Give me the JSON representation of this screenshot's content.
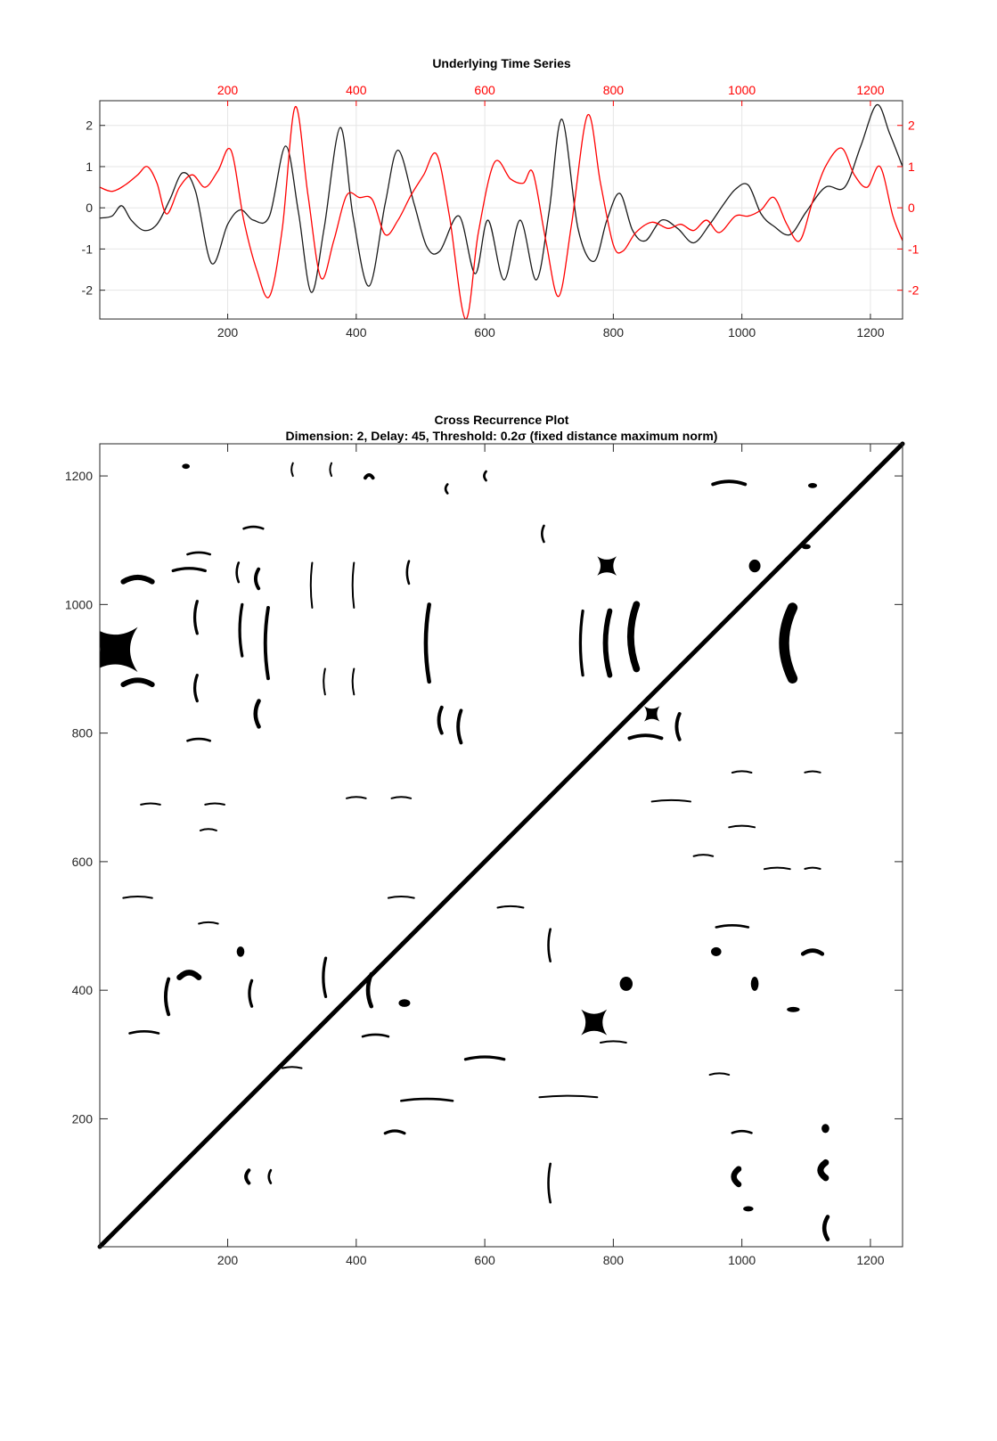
{
  "chart_data": [
    {
      "type": "line",
      "title": "Underlying Time Series",
      "xlim": [
        1,
        1250
      ],
      "ylim": [
        -2.7,
        2.6
      ],
      "grid": true,
      "bottom_x_ticks": [
        "200",
        "400",
        "600",
        "800",
        "1000",
        "1200"
      ],
      "top_x_ticks": [
        "200",
        "400",
        "600",
        "800",
        "1000",
        "1200"
      ],
      "left_y_ticks": [
        "2",
        "1",
        "0",
        "-1",
        "-2"
      ],
      "right_y_ticks": [
        "2",
        "1",
        "0",
        "-1",
        "-2"
      ],
      "colors": {
        "series_black": "#1a1a1a",
        "series_red": "#ff0000",
        "right_axis": "#ff0000",
        "top_axis": "#ff0000"
      },
      "series": [
        {
          "color": "#1a1a1a",
          "x": [
            1,
            20,
            35,
            50,
            70,
            90,
            110,
            130,
            150,
            175,
            200,
            220,
            240,
            265,
            290,
            310,
            330,
            350,
            375,
            395,
            420,
            445,
            465,
            490,
            510,
            530,
            560,
            585,
            605,
            630,
            655,
            680,
            700,
            720,
            745,
            770,
            790,
            810,
            830,
            850,
            875,
            900,
            925,
            950,
            970,
            990,
            1010,
            1030,
            1050,
            1075,
            1100,
            1130,
            1160,
            1185,
            1210,
            1230,
            1250
          ],
          "y": [
            -0.25,
            -0.2,
            0.05,
            -0.3,
            -0.55,
            -0.4,
            0.2,
            0.85,
            0.4,
            -1.35,
            -0.4,
            -0.05,
            -0.3,
            -0.2,
            1.5,
            -0.1,
            -2.05,
            -0.5,
            1.95,
            -0.2,
            -1.9,
            0.1,
            1.4,
            0.1,
            -0.95,
            -1.05,
            -0.2,
            -1.6,
            -0.3,
            -1.75,
            -0.3,
            -1.75,
            -0.1,
            2.15,
            -0.5,
            -1.3,
            -0.3,
            0.35,
            -0.55,
            -0.8,
            -0.3,
            -0.5,
            -0.85,
            -0.4,
            0.05,
            0.45,
            0.55,
            -0.15,
            -0.45,
            -0.65,
            -0.1,
            0.5,
            0.5,
            1.5,
            2.5,
            1.8,
            1.0
          ]
        },
        {
          "color": "#ff0000",
          "x": [
            1,
            20,
            40,
            60,
            75,
            90,
            105,
            125,
            145,
            165,
            185,
            205,
            225,
            245,
            265,
            285,
            305,
            325,
            345,
            365,
            385,
            405,
            425,
            445,
            465,
            485,
            505,
            525,
            545,
            570,
            590,
            615,
            640,
            660,
            675,
            695,
            715,
            735,
            760,
            780,
            800,
            815,
            835,
            860,
            885,
            905,
            925,
            945,
            965,
            990,
            1010,
            1030,
            1050,
            1070,
            1090,
            1110,
            1130,
            1155,
            1175,
            1195,
            1215,
            1235,
            1250
          ],
          "y": [
            0.5,
            0.4,
            0.55,
            0.8,
            1.0,
            0.6,
            -0.15,
            0.5,
            0.8,
            0.5,
            0.9,
            1.4,
            -0.3,
            -1.5,
            -2.15,
            -0.5,
            2.45,
            0.3,
            -1.7,
            -0.8,
            0.3,
            0.25,
            0.2,
            -0.65,
            -0.3,
            0.3,
            0.8,
            1.3,
            -0.2,
            -2.7,
            -0.6,
            1.1,
            0.7,
            0.6,
            0.85,
            -0.8,
            -2.15,
            -0.4,
            2.25,
            0.6,
            -0.9,
            -1.05,
            -0.6,
            -0.35,
            -0.5,
            -0.4,
            -0.55,
            -0.3,
            -0.6,
            -0.2,
            -0.2,
            -0.05,
            0.25,
            -0.4,
            -0.8,
            0.15,
            1.0,
            1.45,
            0.8,
            0.5,
            1.0,
            -0.2,
            -0.8
          ]
        }
      ]
    },
    {
      "type": "heatmap",
      "title": "Cross Recurrence Plot",
      "subtitle": "Dimension: 2,  Delay: 45,  Threshold: 0.2σ (fixed distance maximum norm)",
      "xlim": [
        1,
        1250
      ],
      "ylim": [
        1,
        1250
      ],
      "x_ticks": [
        "200",
        "400",
        "600",
        "800",
        "1000",
        "1200"
      ],
      "y_ticks": [
        "1200",
        "1000",
        "800",
        "600",
        "400",
        "200"
      ],
      "diagonal": {
        "from": [
          1,
          1
        ],
        "to": [
          1250,
          1250
        ]
      },
      "colors": {
        "recurrence": "#000000",
        "background": "#ffffff"
      },
      "blobs": [
        {
          "x": 25,
          "y": 930,
          "w": 70,
          "h": 70,
          "shape": "cross"
        },
        {
          "x": 60,
          "y": 1040,
          "w": 45,
          "h": 18,
          "shape": "arc"
        },
        {
          "x": 60,
          "y": 880,
          "w": 45,
          "h": 18,
          "shape": "arc"
        },
        {
          "x": 140,
          "y": 1055,
          "w": 50,
          "h": 10,
          "shape": "arc"
        },
        {
          "x": 150,
          "y": 980,
          "w": 10,
          "h": 50,
          "shape": "arc"
        },
        {
          "x": 150,
          "y": 870,
          "w": 10,
          "h": 40,
          "shape": "arc"
        },
        {
          "x": 155,
          "y": 1080,
          "w": 35,
          "h": 8,
          "shape": "arc"
        },
        {
          "x": 155,
          "y": 790,
          "w": 35,
          "h": 8,
          "shape": "arc"
        },
        {
          "x": 135,
          "y": 1215,
          "w": 12,
          "h": 8,
          "shape": "dot"
        },
        {
          "x": 240,
          "y": 1120,
          "w": 30,
          "h": 8,
          "shape": "arc"
        },
        {
          "x": 245,
          "y": 1040,
          "w": 12,
          "h": 30,
          "shape": "arc"
        },
        {
          "x": 220,
          "y": 960,
          "w": 10,
          "h": 80,
          "shape": "arc"
        },
        {
          "x": 260,
          "y": 940,
          "w": 12,
          "h": 110,
          "shape": "arc"
        },
        {
          "x": 245,
          "y": 830,
          "w": 14,
          "h": 40,
          "shape": "arc"
        },
        {
          "x": 215,
          "y": 1050,
          "w": 8,
          "h": 30,
          "shape": "arc"
        },
        {
          "x": 510,
          "y": 940,
          "w": 14,
          "h": 120,
          "shape": "arc"
        },
        {
          "x": 480,
          "y": 1050,
          "w": 8,
          "h": 35,
          "shape": "arc"
        },
        {
          "x": 560,
          "y": 810,
          "w": 12,
          "h": 50,
          "shape": "arc"
        },
        {
          "x": 530,
          "y": 820,
          "w": 12,
          "h": 40,
          "shape": "arc"
        },
        {
          "x": 790,
          "y": 1060,
          "w": 30,
          "h": 30,
          "shape": "cross"
        },
        {
          "x": 830,
          "y": 950,
          "w": 24,
          "h": 100,
          "shape": "arc"
        },
        {
          "x": 790,
          "y": 940,
          "w": 18,
          "h": 100,
          "shape": "arc"
        },
        {
          "x": 750,
          "y": 940,
          "w": 10,
          "h": 100,
          "shape": "arc"
        },
        {
          "x": 860,
          "y": 830,
          "w": 24,
          "h": 24,
          "shape": "cross"
        },
        {
          "x": 900,
          "y": 810,
          "w": 12,
          "h": 40,
          "shape": "arc"
        },
        {
          "x": 850,
          "y": 795,
          "w": 50,
          "h": 12,
          "shape": "arc"
        },
        {
          "x": 1070,
          "y": 940,
          "w": 35,
          "h": 110,
          "shape": "arc"
        },
        {
          "x": 1020,
          "y": 1060,
          "w": 18,
          "h": 20,
          "shape": "dot"
        },
        {
          "x": 980,
          "y": 1190,
          "w": 50,
          "h": 12,
          "shape": "arc"
        },
        {
          "x": 1110,
          "y": 1185,
          "w": 14,
          "h": 8,
          "shape": "dot"
        },
        {
          "x": 1100,
          "y": 1090,
          "w": 14,
          "h": 8,
          "shape": "dot"
        },
        {
          "x": 140,
          "y": 425,
          "w": 30,
          "h": 20,
          "shape": "arc"
        },
        {
          "x": 105,
          "y": 390,
          "w": 12,
          "h": 55,
          "shape": "arc"
        },
        {
          "x": 70,
          "y": 335,
          "w": 45,
          "h": 8,
          "shape": "arc"
        },
        {
          "x": 60,
          "y": 545,
          "w": 45,
          "h": 6,
          "shape": "arc"
        },
        {
          "x": 235,
          "y": 395,
          "w": 10,
          "h": 40,
          "shape": "arc"
        },
        {
          "x": 220,
          "y": 460,
          "w": 12,
          "h": 16,
          "shape": "dot"
        },
        {
          "x": 170,
          "y": 505,
          "w": 30,
          "h": 6,
          "shape": "arc"
        },
        {
          "x": 350,
          "y": 420,
          "w": 10,
          "h": 60,
          "shape": "arc"
        },
        {
          "x": 420,
          "y": 400,
          "w": 14,
          "h": 50,
          "shape": "arc"
        },
        {
          "x": 430,
          "y": 330,
          "w": 40,
          "h": 8,
          "shape": "arc"
        },
        {
          "x": 475,
          "y": 380,
          "w": 18,
          "h": 12,
          "shape": "dot"
        },
        {
          "x": 770,
          "y": 350,
          "w": 40,
          "h": 40,
          "shape": "cross"
        },
        {
          "x": 820,
          "y": 410,
          "w": 20,
          "h": 22,
          "shape": "dot"
        },
        {
          "x": 960,
          "y": 460,
          "w": 16,
          "h": 14,
          "shape": "dot"
        },
        {
          "x": 1020,
          "y": 410,
          "w": 12,
          "h": 22,
          "shape": "dot"
        },
        {
          "x": 1110,
          "y": 460,
          "w": 30,
          "h": 14,
          "shape": "arc"
        },
        {
          "x": 985,
          "y": 500,
          "w": 50,
          "h": 8,
          "shape": "arc"
        },
        {
          "x": 1080,
          "y": 370,
          "w": 20,
          "h": 8,
          "shape": "dot"
        },
        {
          "x": 990,
          "y": 110,
          "w": 20,
          "h": 24,
          "shape": "arc"
        },
        {
          "x": 1125,
          "y": 120,
          "w": 22,
          "h": 24,
          "shape": "arc"
        },
        {
          "x": 1130,
          "y": 30,
          "w": 14,
          "h": 35,
          "shape": "arc"
        },
        {
          "x": 1130,
          "y": 185,
          "w": 12,
          "h": 14,
          "shape": "dot"
        },
        {
          "x": 600,
          "y": 295,
          "w": 60,
          "h": 10,
          "shape": "arc"
        },
        {
          "x": 510,
          "y": 230,
          "w": 80,
          "h": 8,
          "shape": "arc"
        },
        {
          "x": 730,
          "y": 235,
          "w": 90,
          "h": 6,
          "shape": "arc"
        },
        {
          "x": 890,
          "y": 695,
          "w": 60,
          "h": 6,
          "shape": "arc"
        },
        {
          "x": 1000,
          "y": 655,
          "w": 40,
          "h": 6,
          "shape": "arc"
        },
        {
          "x": 800,
          "y": 320,
          "w": 40,
          "h": 6,
          "shape": "arc"
        },
        {
          "x": 470,
          "y": 545,
          "w": 40,
          "h": 6,
          "shape": "arc"
        },
        {
          "x": 640,
          "y": 530,
          "w": 40,
          "h": 6,
          "shape": "arc"
        },
        {
          "x": 230,
          "y": 110,
          "w": 12,
          "h": 20,
          "shape": "arc"
        },
        {
          "x": 265,
          "y": 110,
          "w": 8,
          "h": 20,
          "shape": "arc"
        },
        {
          "x": 460,
          "y": 180,
          "w": 30,
          "h": 10,
          "shape": "arc"
        },
        {
          "x": 965,
          "y": 270,
          "w": 30,
          "h": 6,
          "shape": "arc"
        },
        {
          "x": 1000,
          "y": 180,
          "w": 30,
          "h": 8,
          "shape": "arc"
        },
        {
          "x": 1010,
          "y": 60,
          "w": 16,
          "h": 8,
          "shape": "dot"
        },
        {
          "x": 700,
          "y": 100,
          "w": 8,
          "h": 60,
          "shape": "arc"
        },
        {
          "x": 700,
          "y": 470,
          "w": 8,
          "h": 50,
          "shape": "arc"
        },
        {
          "x": 690,
          "y": 1110,
          "w": 8,
          "h": 25,
          "shape": "arc"
        },
        {
          "x": 350,
          "y": 880,
          "w": 6,
          "h": 40,
          "shape": "arc"
        },
        {
          "x": 395,
          "y": 880,
          "w": 6,
          "h": 40,
          "shape": "arc"
        },
        {
          "x": 330,
          "y": 1030,
          "w": 6,
          "h": 70,
          "shape": "arc"
        },
        {
          "x": 395,
          "y": 1030,
          "w": 6,
          "h": 70,
          "shape": "arc"
        },
        {
          "x": 1055,
          "y": 590,
          "w": 40,
          "h": 6,
          "shape": "arc"
        },
        {
          "x": 1000,
          "y": 740,
          "w": 30,
          "h": 6,
          "shape": "arc"
        },
        {
          "x": 940,
          "y": 610,
          "w": 30,
          "h": 6,
          "shape": "arc"
        },
        {
          "x": 1110,
          "y": 740,
          "w": 24,
          "h": 5,
          "shape": "arc"
        },
        {
          "x": 1110,
          "y": 590,
          "w": 24,
          "h": 5,
          "shape": "arc"
        },
        {
          "x": 80,
          "y": 690,
          "w": 30,
          "h": 5,
          "shape": "arc"
        },
        {
          "x": 180,
          "y": 690,
          "w": 30,
          "h": 5,
          "shape": "arc"
        },
        {
          "x": 170,
          "y": 650,
          "w": 25,
          "h": 6,
          "shape": "arc"
        },
        {
          "x": 300,
          "y": 280,
          "w": 30,
          "h": 5,
          "shape": "arc"
        },
        {
          "x": 400,
          "y": 700,
          "w": 30,
          "h": 6,
          "shape": "arc"
        },
        {
          "x": 470,
          "y": 700,
          "w": 30,
          "h": 6,
          "shape": "arc"
        },
        {
          "x": 300,
          "y": 1210,
          "w": 6,
          "h": 20,
          "shape": "arc"
        },
        {
          "x": 360,
          "y": 1210,
          "w": 6,
          "h": 20,
          "shape": "arc"
        },
        {
          "x": 420,
          "y": 1200,
          "w": 12,
          "h": 12,
          "shape": "arc"
        },
        {
          "x": 600,
          "y": 1200,
          "w": 8,
          "h": 14,
          "shape": "arc"
        },
        {
          "x": 540,
          "y": 1180,
          "w": 8,
          "h": 14,
          "shape": "arc"
        }
      ]
    }
  ]
}
